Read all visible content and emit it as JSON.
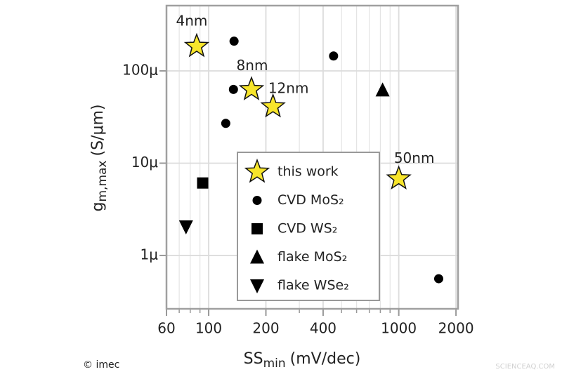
{
  "chart_data": {
    "type": "scatter",
    "xlabel": {
      "main": "SS",
      "sub": "min",
      "unit": "(mV/dec)"
    },
    "ylabel": {
      "main": "g",
      "sub": "m,max",
      "unit": "(S/μm)"
    },
    "xscale": "log",
    "yscale": "log",
    "xlim": [
      60,
      2050
    ],
    "ylim": [
      2.64e-07,
      0.00051
    ],
    "xticks": [
      60,
      100,
      200,
      400,
      1000,
      2000
    ],
    "x_minor_ticks": [
      70,
      80,
      90,
      300,
      500,
      600,
      700,
      800,
      900
    ],
    "yticks": [
      {
        "value": 0.0001,
        "label": "100μ"
      },
      {
        "value": 1e-05,
        "label": "10μ"
      },
      {
        "value": 1e-06,
        "label": "1μ"
      }
    ],
    "grid": true,
    "series": [
      {
        "name": "this work",
        "marker": "star",
        "color": "#f7e52b",
        "x": [
          86.5,
          168,
          218,
          1000
        ],
        "y": [
          0.000185,
          6.3e-05,
          4.1e-05,
          6.8e-06
        ],
        "point_labels": [
          "4nm",
          "8nm",
          "12nm",
          "50nm"
        ]
      },
      {
        "name": "CVD MoS₂",
        "marker": "circle",
        "color": "#000000",
        "x": [
          136,
          454,
          135,
          123,
          1622
        ],
        "y": [
          0.00021,
          0.000145,
          6.3e-05,
          2.7e-05,
          5.6e-07
        ]
      },
      {
        "name": "CVD WS₂",
        "marker": "square",
        "color": "#000000",
        "x": [
          93
        ],
        "y": [
          6.1e-06
        ]
      },
      {
        "name": "flake MoS₂",
        "marker": "triangle-up",
        "color": "#000000",
        "x": [
          822
        ],
        "y": [
          6.2e-05
        ]
      },
      {
        "name": "flake WSe₂",
        "marker": "triangle-down",
        "color": "#000000",
        "x": [
          76
        ],
        "y": [
          2.05e-06
        ]
      }
    ],
    "credit": "© imec",
    "watermark": "SCIENCEAQ.COM"
  }
}
